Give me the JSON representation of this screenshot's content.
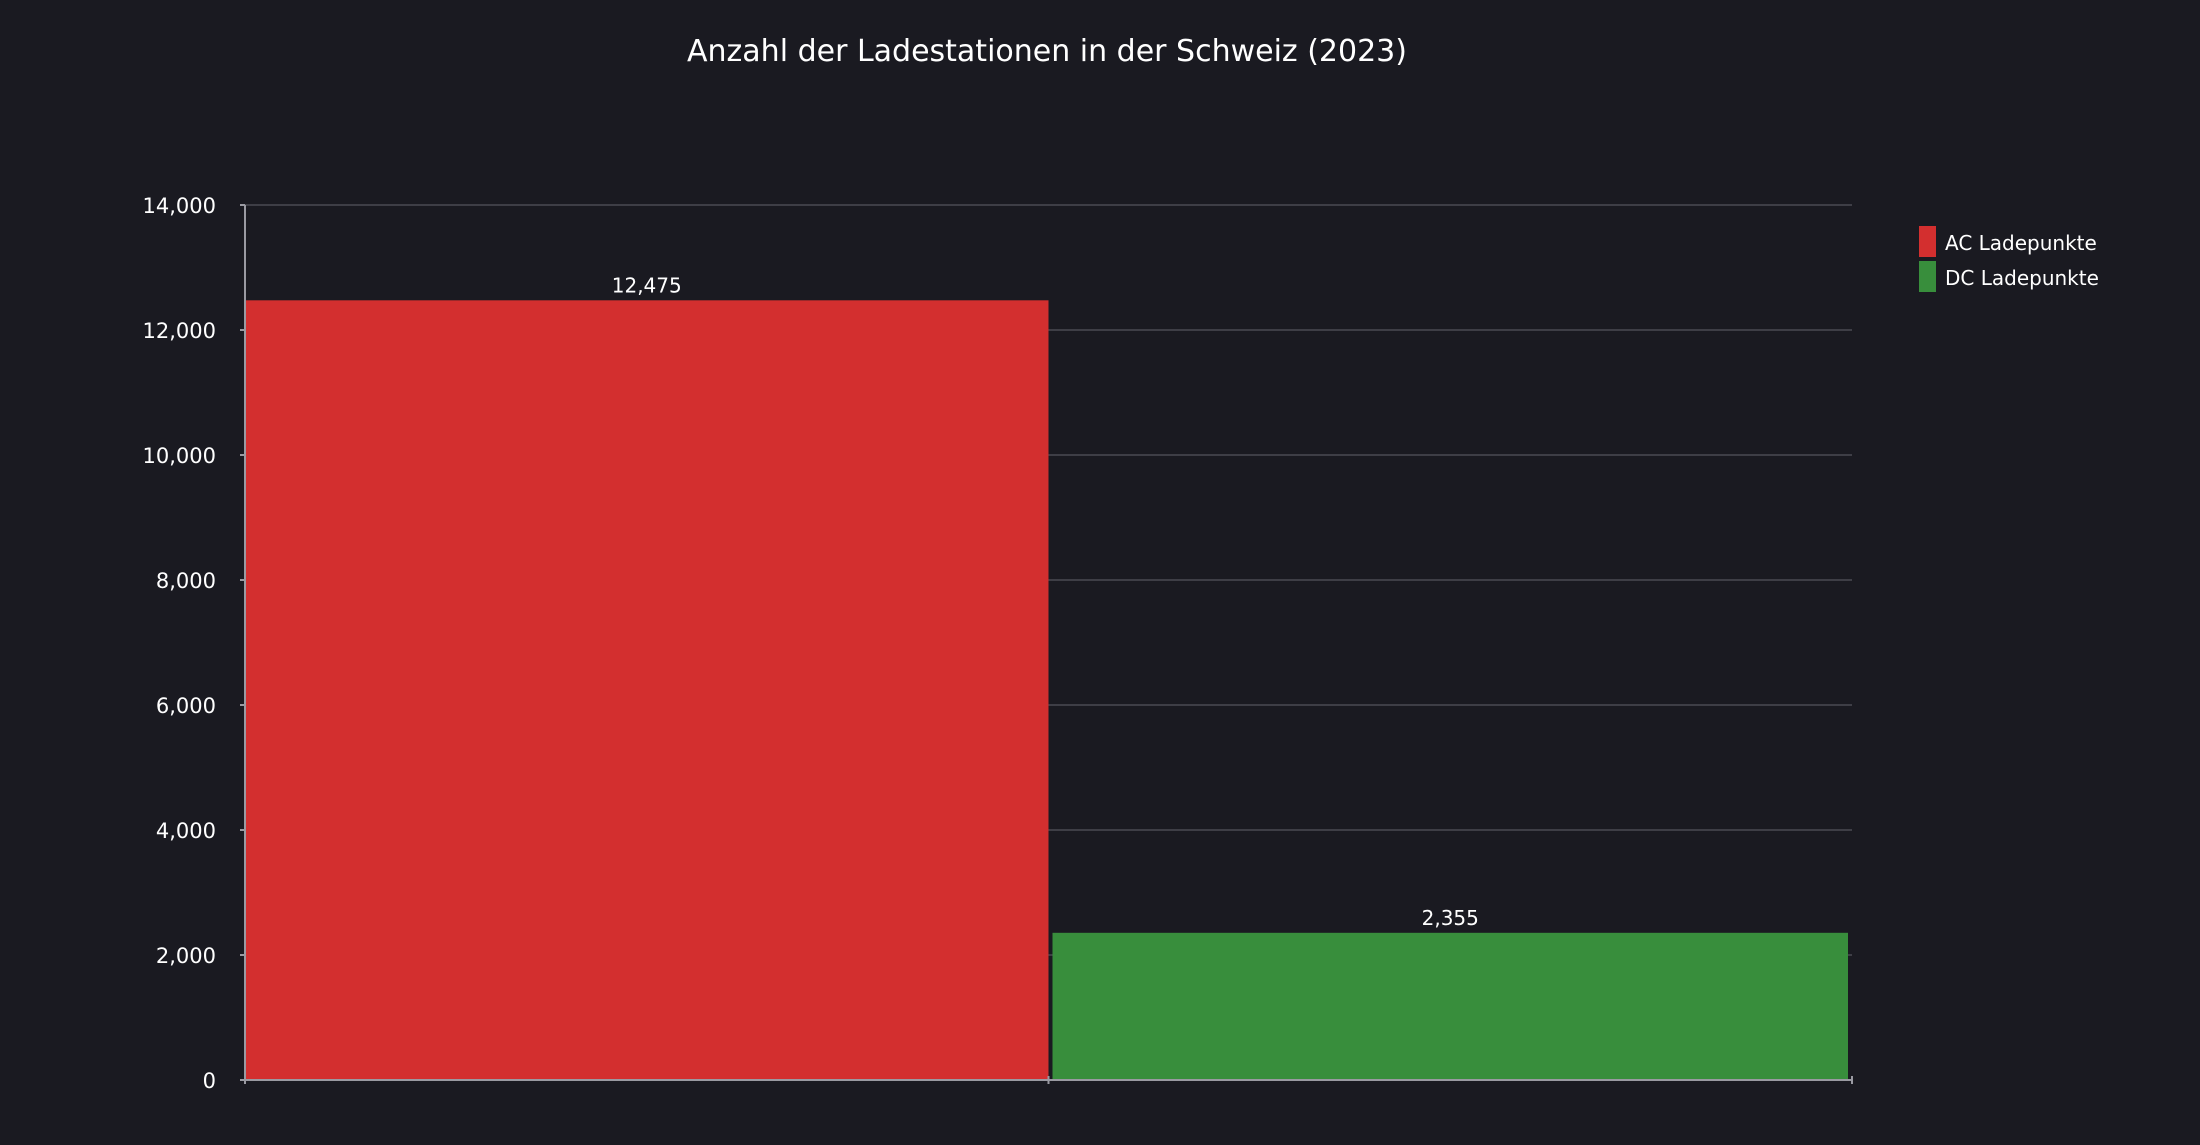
{
  "chart_data": {
    "type": "bar",
    "title": "Anzahl der Ladestationen in der Schweiz (2023)",
    "xlabel": "",
    "ylabel": "",
    "ylim": [
      0,
      14000
    ],
    "yticks": [
      0,
      2000,
      4000,
      6000,
      8000,
      10000,
      12000,
      14000
    ],
    "ytick_labels": [
      "0",
      "2,000",
      "4,000",
      "6,000",
      "8,000",
      "10,000",
      "12,000",
      "14,000"
    ],
    "grid": true,
    "legend_position": "top-right",
    "series": [
      {
        "name": "AC Ladepunkte",
        "value": 12475,
        "label": "12,475",
        "color": "#d32f2f"
      },
      {
        "name": "DC Ladepunkte",
        "value": 2355,
        "label": "2,355",
        "color": "#388e3c"
      }
    ]
  },
  "colors": {
    "background": "#1a1a21",
    "text": "#ffffff",
    "grid": "#4a4a52",
    "axis": "#9a9aa2"
  }
}
